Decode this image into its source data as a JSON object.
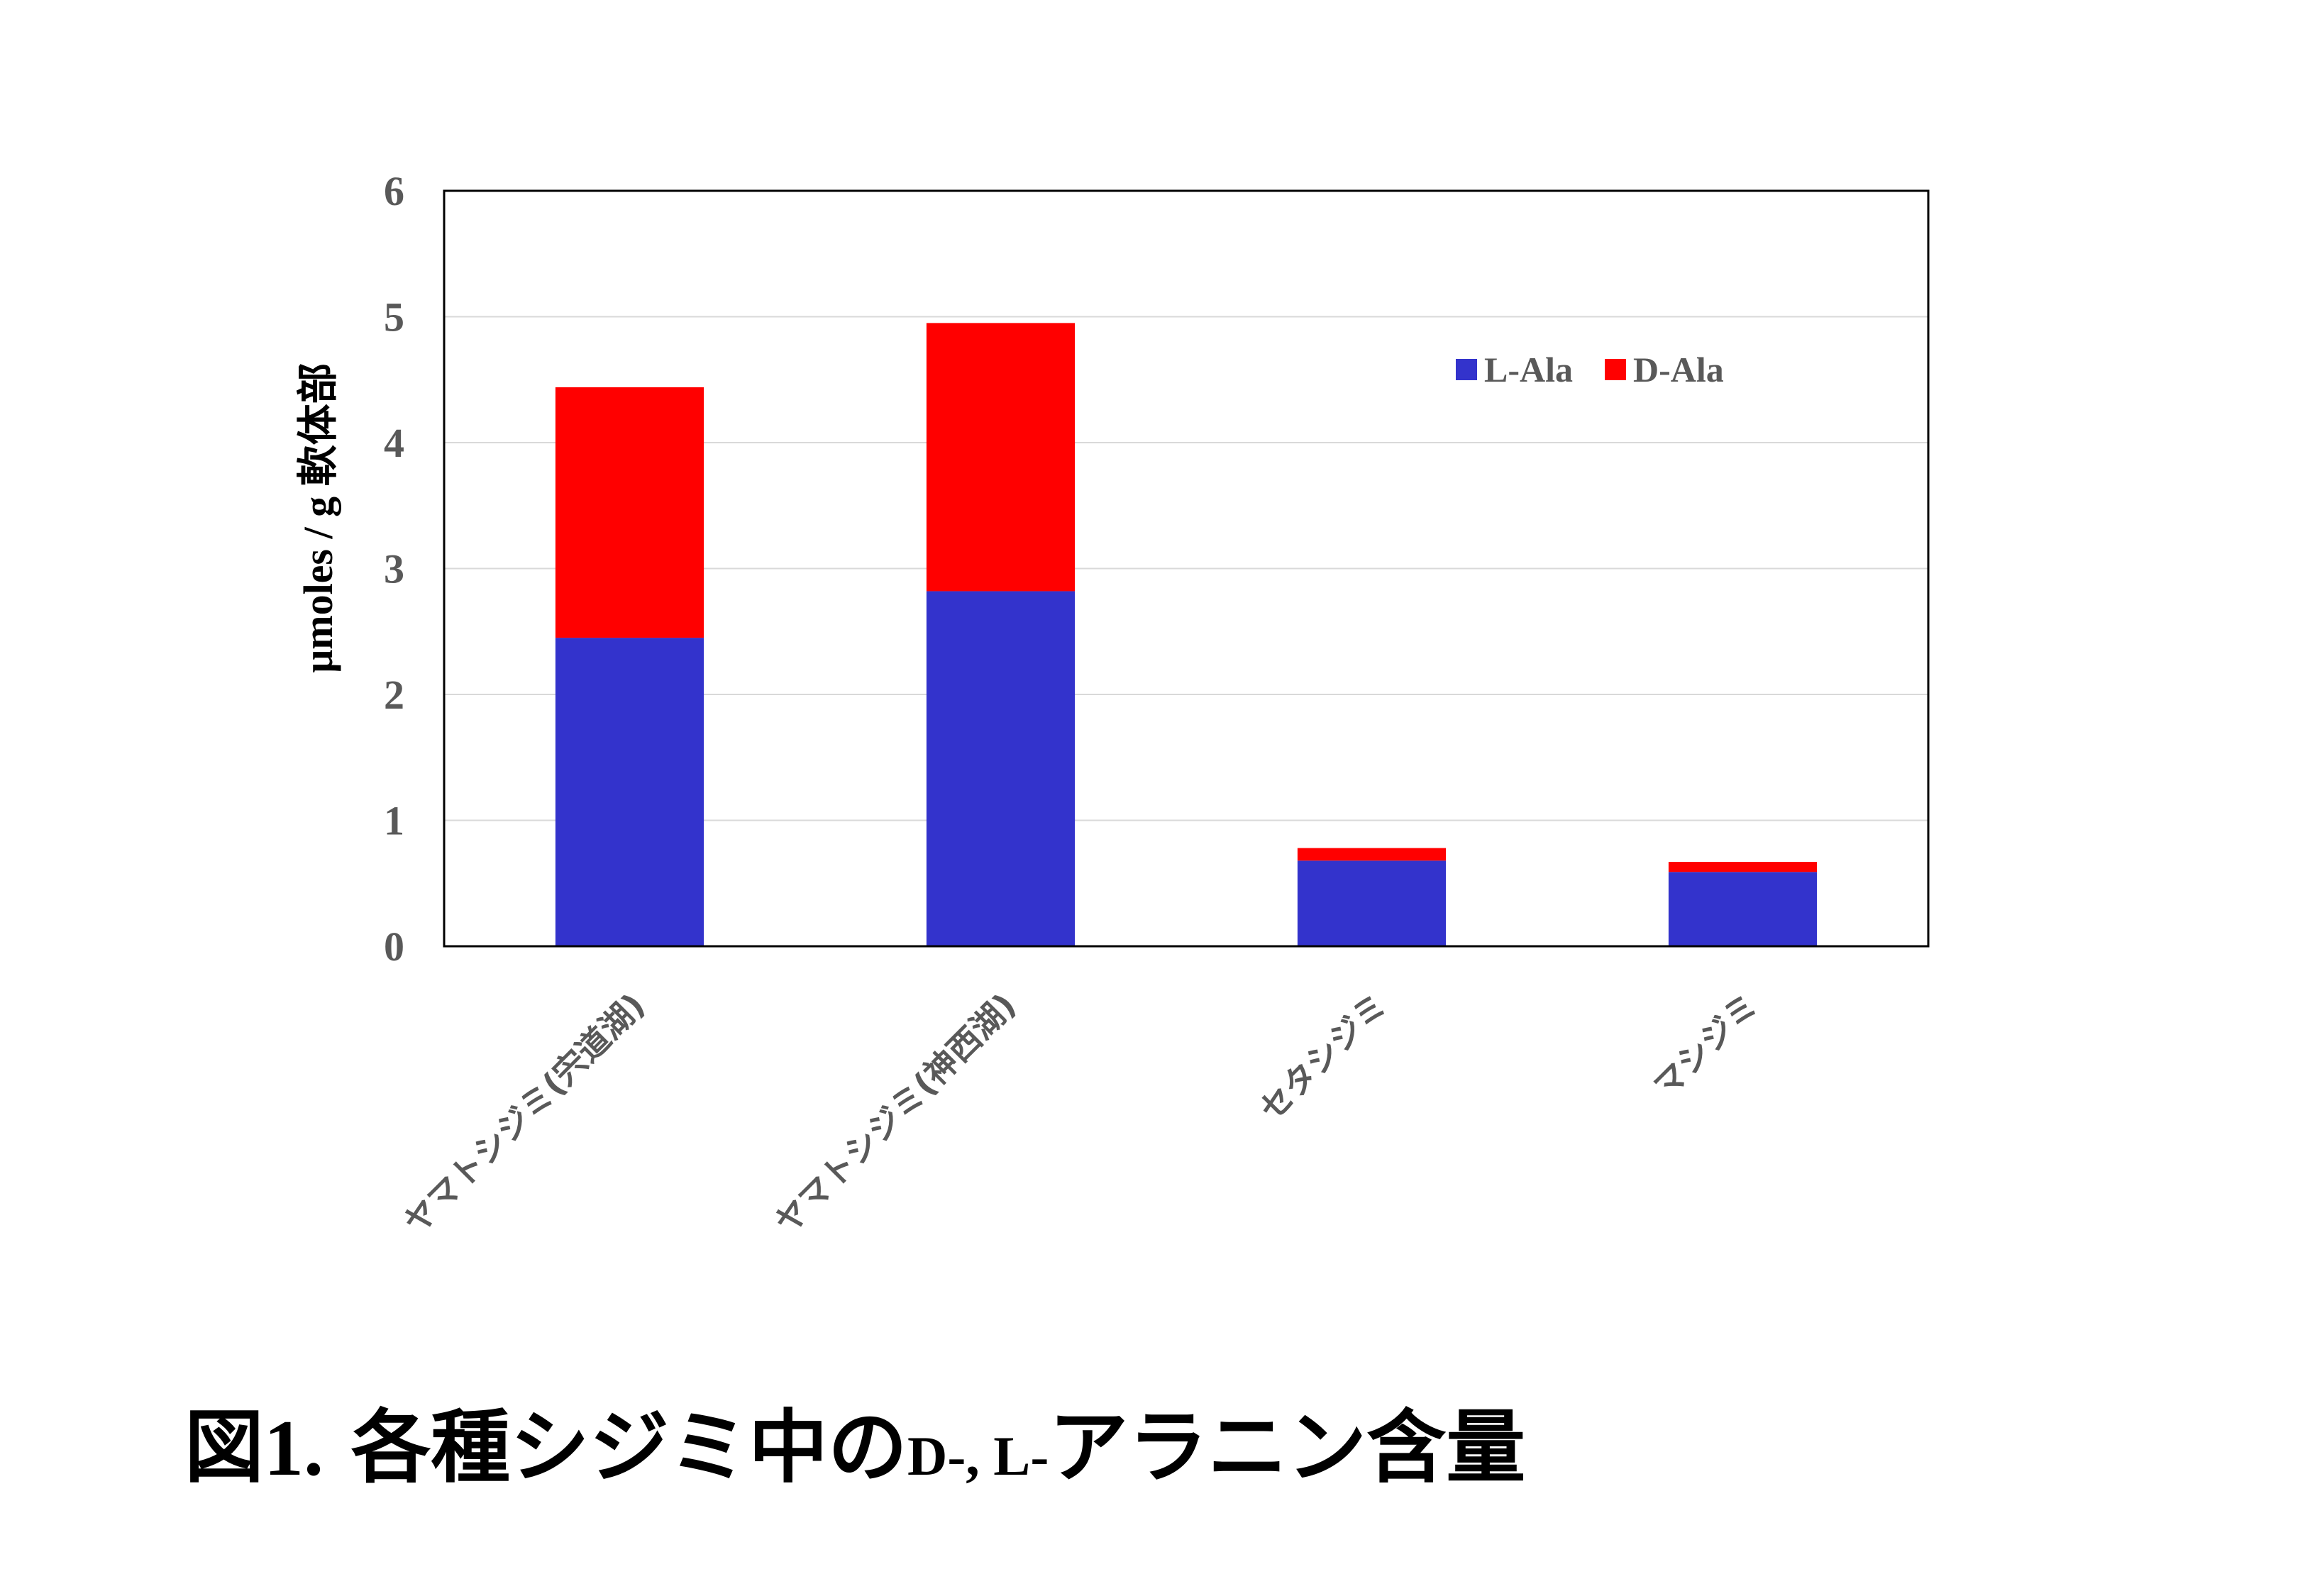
{
  "chart_data": {
    "type": "bar",
    "stacked": true,
    "categories": [
      "ヤマトシジミ(宍道湖)",
      "ヤマトシジミ(神西湖)",
      "セタシジミ",
      "マシジミ"
    ],
    "series": [
      {
        "name": "L-Ala",
        "color": "#3333CC",
        "values": [
          2.45,
          2.82,
          0.68,
          0.59
        ]
      },
      {
        "name": "D-Ala",
        "color": "#FF0000",
        "values": [
          1.99,
          2.13,
          0.1,
          0.08
        ]
      }
    ],
    "xlabel": "",
    "ylabel": "μmoles / g 軟体部",
    "ylim": [
      0,
      6
    ],
    "yticks": [
      0,
      1,
      2,
      3,
      4,
      5,
      6
    ],
    "grid": true,
    "legend_position": "top-right"
  },
  "caption": {
    "part1": "図",
    "part2": "1.",
    "part3": " 各種シジミ中の",
    "part4": "D-, L-",
    "part5": "アラニン含量"
  }
}
